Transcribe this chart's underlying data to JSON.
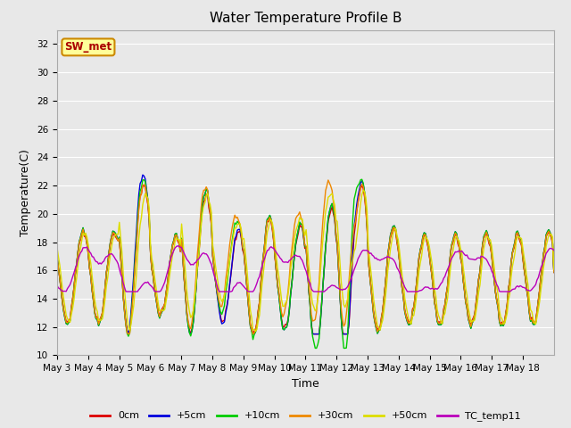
{
  "title": "Water Temperature Profile B",
  "xlabel": "Time",
  "ylabel": "Temperature(C)",
  "ylim": [
    10,
    33
  ],
  "yticks": [
    10,
    12,
    14,
    16,
    18,
    20,
    22,
    24,
    26,
    28,
    30,
    32
  ],
  "x_labels": [
    "May 3",
    "May 4",
    "May 5",
    "May 6",
    "May 7",
    "May 8",
    "May 9",
    "May 10",
    "May 11",
    "May 12",
    "May 13",
    "May 14",
    "May 15",
    "May 16",
    "May 17",
    "May 18"
  ],
  "legend_labels": [
    "0cm",
    "+5cm",
    "+10cm",
    "+30cm",
    "+50cm",
    "TC_temp11"
  ],
  "legend_colors": [
    "#dd0000",
    "#0000dd",
    "#00cc00",
    "#ee8800",
    "#dddd00",
    "#bb00bb"
  ],
  "bg_color": "#e8e8e8",
  "plot_bg_color": "#e8e8e8",
  "annotation_text": "SW_met",
  "annotation_bg": "#ffff99",
  "annotation_border": "#cc8800",
  "annotation_text_color": "#aa0000",
  "grid_color": "#ffffff",
  "title_fontsize": 11,
  "axis_fontsize": 9,
  "tick_fontsize": 7.5
}
